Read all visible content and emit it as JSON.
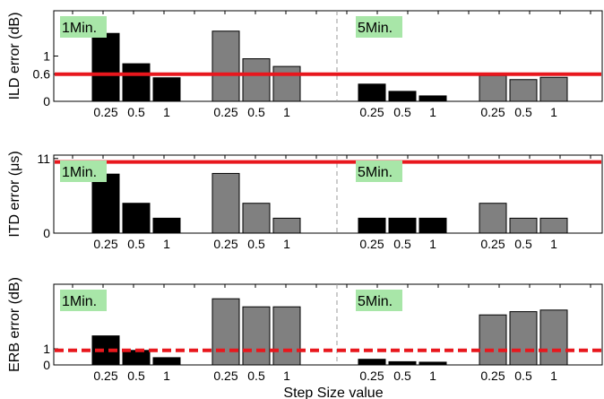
{
  "xlabel": "Step Size value",
  "colors": {
    "phase_1": "#000000",
    "phase_2": "#808080",
    "threshold": "#e8171d",
    "label_bg": "#a8e6a8"
  },
  "chart_data": [
    {
      "type": "bar",
      "ylabel": "ILD error (dB)",
      "ylim": [
        0,
        2
      ],
      "yticks": [
        "0",
        "0.6",
        "1"
      ],
      "ytick_values": [
        0,
        0.6,
        1
      ],
      "groups": [
        {
          "label": "1Min.",
          "categories": [
            "0.25",
            "0.5",
            "1"
          ],
          "series": [
            {
              "color": "#000000",
              "values": [
                1.5,
                0.83,
                0.52
              ]
            },
            {
              "color": "#808080",
              "values": [
                1.55,
                0.94,
                0.77
              ]
            }
          ]
        },
        {
          "label": "5Min.",
          "categories": [
            "0.25",
            "0.5",
            "1"
          ],
          "series": [
            {
              "color": "#000000",
              "values": [
                0.38,
                0.22,
                0.12
              ]
            },
            {
              "color": "#808080",
              "values": [
                0.57,
                0.48,
                0.53
              ]
            }
          ]
        }
      ],
      "threshold": {
        "value": 0.6,
        "style": "solid"
      }
    },
    {
      "type": "bar",
      "ylabel": "ITD error (μs)",
      "ylim": [
        0,
        11.5
      ],
      "yticks": [
        "0",
        "11"
      ],
      "ytick_values": [
        0,
        11
      ],
      "groups": [
        {
          "label": "1Min.",
          "categories": [
            "0.25",
            "0.5",
            "1"
          ],
          "series": [
            {
              "color": "#000000",
              "values": [
                8.7,
                4.4,
                2.2
              ]
            },
            {
              "color": "#808080",
              "values": [
                8.8,
                4.4,
                2.2
              ]
            }
          ]
        },
        {
          "label": "5Min.",
          "categories": [
            "0.25",
            "0.5",
            "1"
          ],
          "series": [
            {
              "color": "#000000",
              "values": [
                2.2,
                2.2,
                2.2
              ]
            },
            {
              "color": "#808080",
              "values": [
                4.4,
                2.2,
                2.2
              ]
            }
          ]
        }
      ],
      "threshold": {
        "value": 10.5,
        "style": "solid"
      }
    },
    {
      "type": "bar",
      "ylabel": "ERB error (dB)",
      "ylim": [
        0,
        5
      ],
      "yticks": [
        "0",
        "1"
      ],
      "ytick_values": [
        0,
        1
      ],
      "groups": [
        {
          "label": "1Min.",
          "categories": [
            "0.25",
            "0.5",
            "1"
          ],
          "series": [
            {
              "color": "#000000",
              "values": [
                1.8,
                0.9,
                0.45
              ]
            },
            {
              "color": "#808080",
              "values": [
                4.1,
                3.6,
                3.6
              ]
            }
          ]
        },
        {
          "label": "5Min.",
          "categories": [
            "0.25",
            "0.5",
            "1"
          ],
          "series": [
            {
              "color": "#000000",
              "values": [
                0.35,
                0.2,
                0.17
              ]
            },
            {
              "color": "#808080",
              "values": [
                3.1,
                3.3,
                3.4
              ]
            }
          ]
        }
      ],
      "threshold": {
        "value": 0.9,
        "style": "dashed"
      }
    }
  ]
}
